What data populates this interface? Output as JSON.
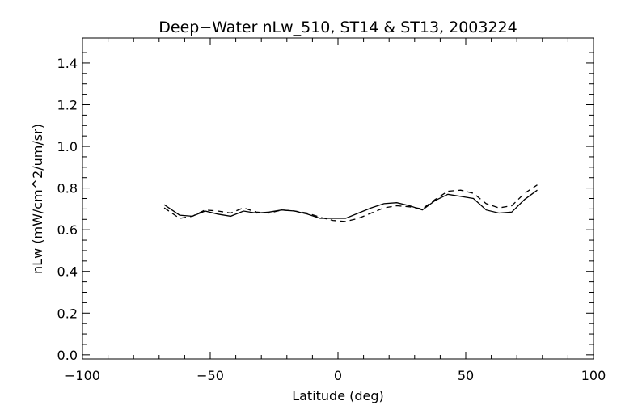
{
  "chart_data": {
    "type": "line",
    "title": "Deep−Water nLw_510, ST14 & ST13, 2003224",
    "xlabel": "Latitude (deg)",
    "ylabel": "nLw (mW/cm^2/um/sr)",
    "xlim": [
      -100,
      100
    ],
    "ylim": [
      -0.02,
      1.52
    ],
    "x_ticks": [
      -100,
      -50,
      0,
      50,
      100
    ],
    "x_tick_labels": [
      "−100",
      "−50",
      "0",
      "50",
      "100"
    ],
    "y_ticks": [
      0.0,
      0.2,
      0.4,
      0.6,
      0.8,
      1.0,
      1.2,
      1.4
    ],
    "y_tick_labels": [
      "0.0",
      "0.2",
      "0.4",
      "0.6",
      "0.8",
      "1.0",
      "1.2",
      "1.4"
    ],
    "grid": false,
    "legend": "none",
    "colors": {
      "line": "#000000",
      "background": "#ffffff"
    },
    "series": [
      {
        "style": "solid",
        "x": [
          -68,
          -62,
          -57,
          -52,
          -47,
          -42,
          -37,
          -32,
          -27,
          -22,
          -17,
          -12,
          -7,
          -2,
          3,
          8,
          13,
          18,
          23,
          28,
          33,
          38,
          43,
          48,
          53,
          58,
          63,
          68,
          73,
          78
        ],
        "y": [
          0.72,
          0.67,
          0.665,
          0.69,
          0.675,
          0.665,
          0.69,
          0.68,
          0.685,
          0.695,
          0.69,
          0.675,
          0.655,
          0.655,
          0.655,
          0.68,
          0.705,
          0.725,
          0.73,
          0.715,
          0.695,
          0.74,
          0.77,
          0.76,
          0.75,
          0.695,
          0.68,
          0.685,
          0.745,
          0.79
        ]
      },
      {
        "style": "dashed",
        "x": [
          -68,
          -62,
          -57,
          -52,
          -47,
          -42,
          -37,
          -32,
          -27,
          -22,
          -17,
          -12,
          -7,
          -2,
          3,
          8,
          13,
          18,
          23,
          28,
          33,
          38,
          43,
          48,
          53,
          58,
          63,
          68,
          73,
          78
        ],
        "y": [
          0.705,
          0.655,
          0.665,
          0.695,
          0.69,
          0.68,
          0.705,
          0.685,
          0.68,
          0.695,
          0.69,
          0.68,
          0.66,
          0.645,
          0.64,
          0.655,
          0.68,
          0.705,
          0.715,
          0.71,
          0.7,
          0.745,
          0.785,
          0.79,
          0.775,
          0.725,
          0.705,
          0.715,
          0.775,
          0.815
        ]
      }
    ]
  }
}
